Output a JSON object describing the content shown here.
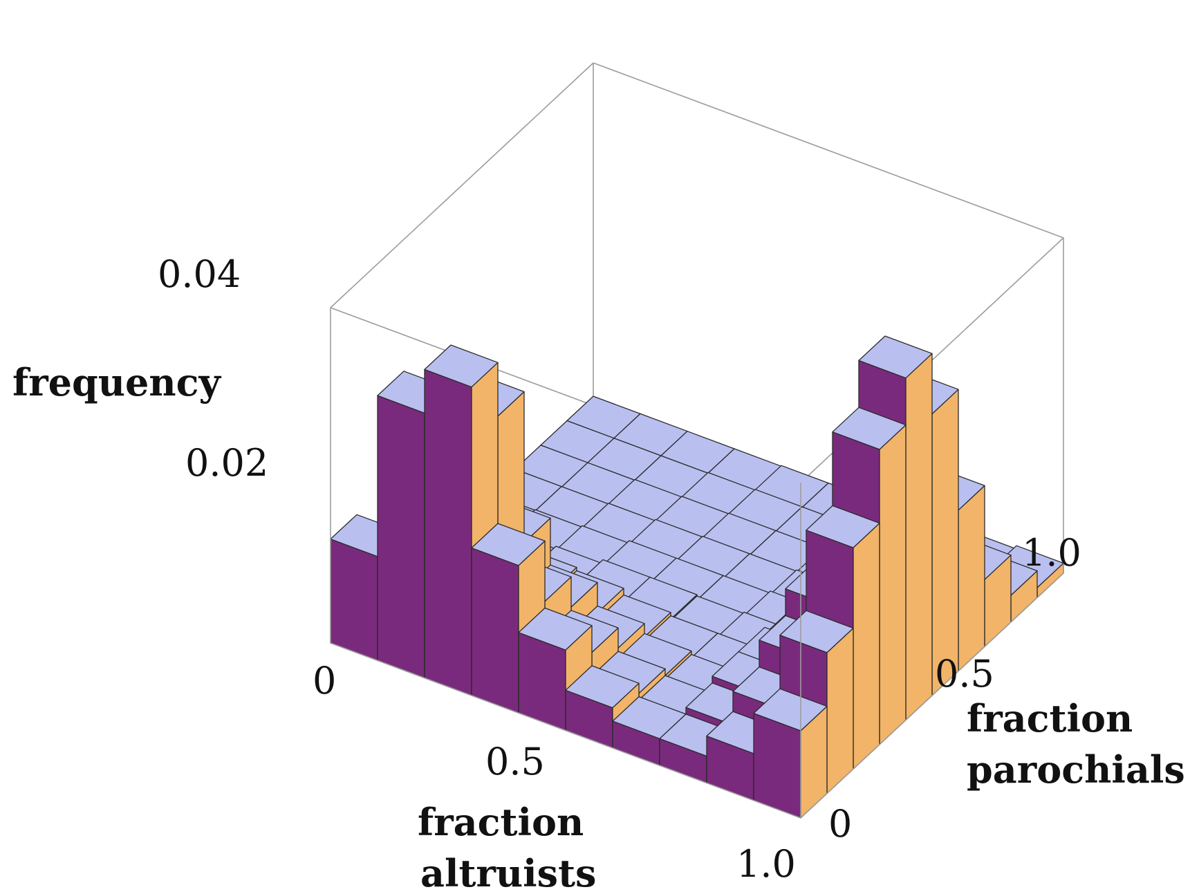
{
  "chart_data": {
    "type": "bar3d",
    "zlabel": "frequency",
    "xlabel": [
      "fraction",
      "altruists"
    ],
    "ylabel": [
      "fraction",
      "parochials"
    ],
    "x_ticks": [
      "0",
      "0.5",
      "1.0"
    ],
    "y_ticks": [
      "0",
      "0.5",
      "1.0"
    ],
    "z_ticks": [
      "0.02",
      "0.04"
    ],
    "bins": 10,
    "x_range": [
      0,
      1
    ],
    "y_range": [
      0,
      1
    ],
    "z_range": [
      0,
      0.05
    ],
    "colors": {
      "top": "#b9c0f0",
      "front": "#7a2a7c",
      "side": "#f2b469",
      "box": "#9c9c9c"
    },
    "frequencies_by_altruist_bin": [
      [
        0.0155,
        0.0063,
        0.002,
        0.0013,
        0.0008,
        0.0005,
        0.0004,
        0.0003,
        0.0003,
        0.0003
      ],
      [
        0.0395,
        0.029,
        0.01,
        0.002,
        0.001,
        0.0006,
        0.0004,
        0.0003,
        0.0003,
        0.0003
      ],
      [
        0.046,
        0.038,
        0.0155,
        0.0045,
        0.0014,
        0.0008,
        0.0005,
        0.0004,
        0.0003,
        0.0003
      ],
      [
        0.022,
        0.013,
        0.0085,
        0.004,
        0.002,
        0.0012,
        0.0007,
        0.0005,
        0.0004,
        0.0003
      ],
      [
        0.012,
        0.008,
        0.005,
        0.003,
        0.002,
        0.0012,
        0.0008,
        0.0006,
        0.0005,
        0.0004
      ],
      [
        0.006,
        0.0045,
        0.0035,
        0.0025,
        0.0018,
        0.0012,
        0.0008,
        0.0006,
        0.0005,
        0.0004
      ],
      [
        0.004,
        0.0035,
        0.003,
        0.0025,
        0.002,
        0.0015,
        0.001,
        0.0007,
        0.0005,
        0.0004
      ],
      [
        0.004,
        0.005,
        0.006,
        0.006,
        0.005,
        0.0035,
        0.002,
        0.0012,
        0.0007,
        0.0005
      ],
      [
        0.007,
        0.01,
        0.014,
        0.018,
        0.019,
        0.016,
        0.01,
        0.005,
        0.0025,
        0.001
      ],
      [
        0.013,
        0.021,
        0.033,
        0.044,
        0.051,
        0.042,
        0.024,
        0.01,
        0.004,
        0.0015
      ]
    ]
  }
}
